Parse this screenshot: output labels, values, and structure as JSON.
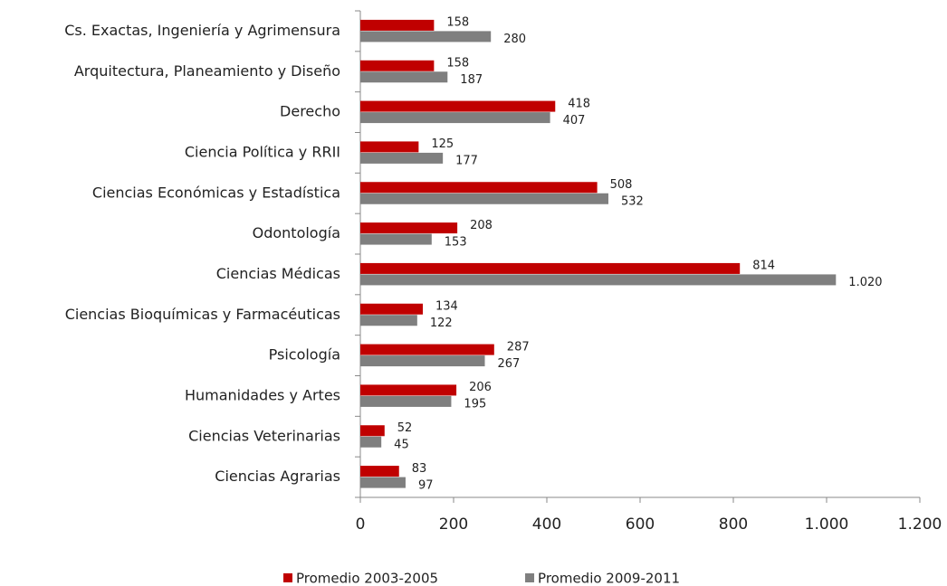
{
  "chart_data": {
    "type": "hbar",
    "categories": [
      "Cs. Exactas, Ingeniería y Agrimensura",
      "Arquitectura, Planeamiento y Diseño",
      "Derecho",
      "Ciencia Política y RRII",
      "Ciencias Económicas y Estadística",
      "Odontología",
      "Ciencias Médicas",
      "Ciencias Bioquímicas y Farmacéuticas",
      "Psicología",
      "Humanidades y Artes",
      "Ciencias Veterinarias",
      "Ciencias Agrarias"
    ],
    "series": [
      {
        "name": "Promedio 2003-2005",
        "color": "#c00000",
        "values": [
          158,
          158,
          418,
          125,
          508,
          208,
          814,
          134,
          287,
          206,
          52,
          83
        ]
      },
      {
        "name": "Promedio 2009-2011",
        "color": "#7f7f7f",
        "values": [
          280,
          187,
          407,
          177,
          532,
          153,
          1020,
          122,
          267,
          195,
          45,
          97
        ],
        "value_labels": [
          "280",
          "187",
          "407",
          "177",
          "532",
          "153",
          "1.020",
          "122",
          "267",
          "195",
          "45",
          "97"
        ]
      }
    ],
    "xlim": [
      0,
      1200
    ],
    "xticks": [
      0,
      200,
      400,
      600,
      800,
      {
        "value": 1000,
        "label": "1.000"
      },
      {
        "value": 1200,
        "label": "1.200"
      }
    ],
    "legend": "bottom"
  }
}
